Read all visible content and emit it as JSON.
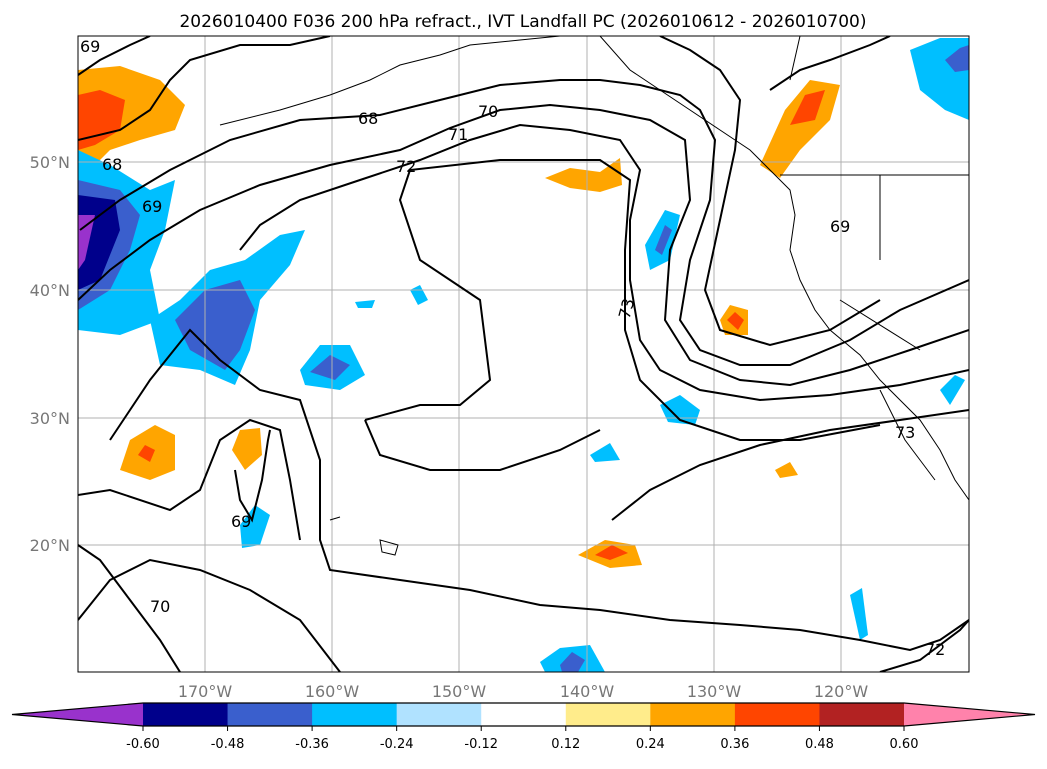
{
  "title": "2026010400 F036 200 hPa refract., IVT Landfall PC (2026010612 - 2026010700)",
  "map": {
    "extent_lon": [
      -180,
      -110
    ],
    "extent_lat": [
      10,
      60
    ],
    "lon_ticks": [
      {
        "lon": -170,
        "label": "170°W"
      },
      {
        "lon": -160,
        "label": "160°W"
      },
      {
        "lon": -150,
        "label": "150°W"
      },
      {
        "lon": -140,
        "label": "140°W"
      },
      {
        "lon": -130,
        "label": "130°W"
      },
      {
        "lon": -120,
        "label": "120°W"
      }
    ],
    "lat_ticks": [
      {
        "lat": 50,
        "label": "50°N"
      },
      {
        "lat": 40,
        "label": "40°N"
      },
      {
        "lat": 30,
        "label": "30°N"
      },
      {
        "lat": 20,
        "label": "20°N"
      }
    ],
    "contour_labels": [
      "69",
      "68",
      "70",
      "71",
      "72",
      "69",
      "68",
      "73",
      "69",
      "73",
      "69",
      "70",
      "72"
    ]
  },
  "colorbar": {
    "ticks": [
      "-0.60",
      "-0.48",
      "-0.36",
      "-0.24",
      "-0.12",
      "0.12",
      "0.24",
      "0.36",
      "0.48",
      "0.60"
    ],
    "colors": [
      "#9932cc",
      "#00008b",
      "#3a5fcd",
      "#00bfff",
      "#b0e2ff",
      "#ffffff",
      "#ffec8b",
      "#ffa500",
      "#ff4500",
      "#b22222",
      "#ff82ab"
    ]
  }
}
